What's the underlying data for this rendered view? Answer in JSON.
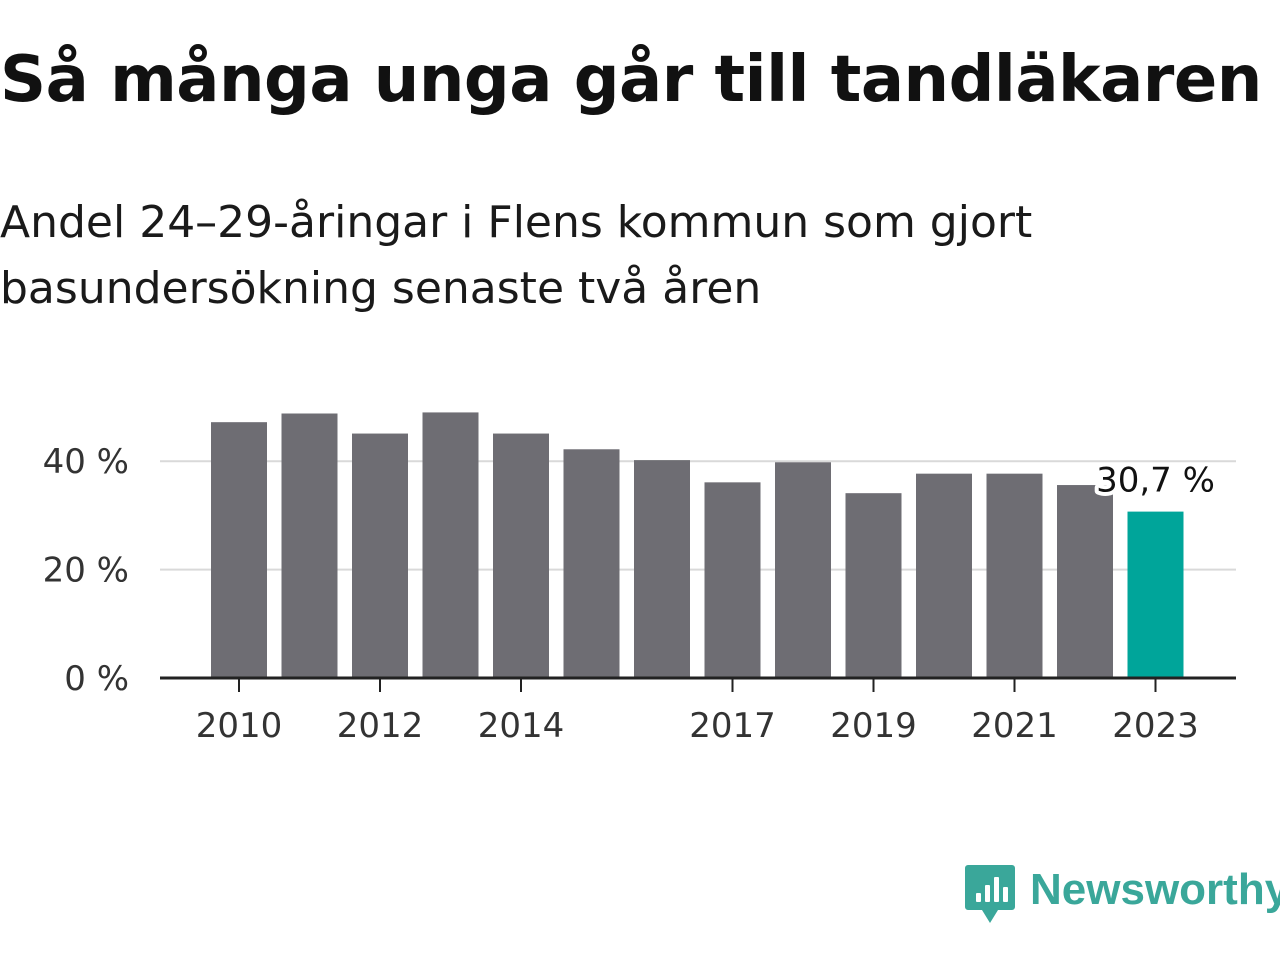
{
  "title": "Så många unga går till tandläkaren",
  "subtitle": "Andel 24–29-åringar i Flens kommun som gjort basundersökning senaste två åren",
  "brand": {
    "name": "Newsworthy",
    "icon": "newsworthy-logo-icon"
  },
  "colors": {
    "bar": "#6e6d73",
    "highlight": "#00a59a",
    "grid": "#d9d9d9",
    "axis": "#222222",
    "tick_text": "#333333",
    "brand": "#3aa79a"
  },
  "chart_data": {
    "type": "bar",
    "categories": [
      "2010",
      "2011",
      "2012",
      "2013",
      "2014",
      "2015",
      "2016",
      "2017",
      "2018",
      "2019",
      "2020",
      "2021",
      "2022",
      "2023"
    ],
    "values": [
      47.2,
      48.8,
      45.1,
      49.0,
      45.1,
      42.2,
      40.2,
      36.1,
      39.8,
      34.1,
      37.7,
      37.7,
      35.6,
      30.7
    ],
    "x_tick_labels": [
      "2010",
      "2012",
      "2014",
      "2017",
      "2019",
      "2021",
      "2023"
    ],
    "y_ticks": [
      0,
      20,
      40
    ],
    "y_tick_labels": [
      "0 %",
      "20 %",
      "40 %"
    ],
    "ylim": [
      0,
      50
    ],
    "grid": true,
    "highlight_category": "2023",
    "annotation": {
      "category": "2023",
      "text": "30,7 %"
    },
    "title": "Så många unga går till tandläkaren",
    "xlabel": "",
    "ylabel": ""
  }
}
